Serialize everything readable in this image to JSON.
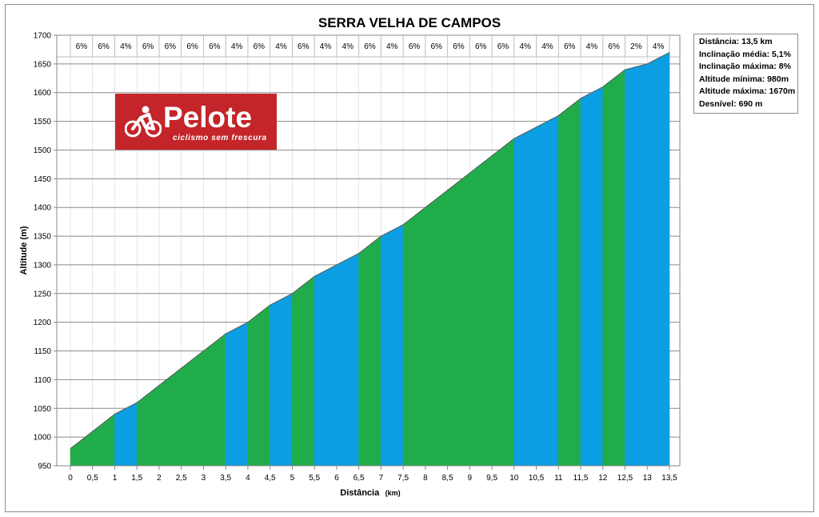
{
  "chart_data": {
    "type": "area",
    "title": "SERRA VELHA DE CAMPOS",
    "xlabel": "Distância",
    "xlabel_unit": "(km)",
    "ylabel": "Altitude (m)",
    "xlim": [
      0,
      13.5
    ],
    "ylim": [
      950,
      1700
    ],
    "y_ticks": [
      950,
      1000,
      1050,
      1100,
      1150,
      1200,
      1250,
      1300,
      1350,
      1400,
      1450,
      1500,
      1550,
      1600,
      1650,
      1700
    ],
    "x_ticks": [
      "0",
      "0,5",
      "1",
      "1,5",
      "2",
      "2,5",
      "3",
      "3,5",
      "4",
      "4,5",
      "5",
      "5,5",
      "6",
      "6,5",
      "7",
      "7,5",
      "8",
      "8,5",
      "9",
      "9,5",
      "10",
      "10,5",
      "11",
      "11,5",
      "12",
      "12,5",
      "13",
      "13,5"
    ],
    "grid": true,
    "x": [
      0,
      0.5,
      1,
      1.5,
      2,
      2.5,
      3,
      3.5,
      4,
      4.5,
      5,
      5.5,
      6,
      6.5,
      7,
      7.5,
      8,
      8.5,
      9,
      9.5,
      10,
      10.5,
      11,
      11.5,
      12,
      12.5,
      13,
      13.5
    ],
    "altitude": [
      980,
      1010,
      1040,
      1060,
      1090,
      1120,
      1150,
      1180,
      1200,
      1230,
      1250,
      1280,
      1300,
      1320,
      1350,
      1370,
      1400,
      1430,
      1460,
      1490,
      1520,
      1540,
      1560,
      1590,
      1610,
      1640,
      1650,
      1670
    ],
    "gradients": [
      "6%",
      "6%",
      "4%",
      "6%",
      "6%",
      "6%",
      "6%",
      "4%",
      "6%",
      "4%",
      "6%",
      "4%",
      "4%",
      "6%",
      "4%",
      "6%",
      "6%",
      "6%",
      "6%",
      "6%",
      "4%",
      "4%",
      "6%",
      "4%",
      "6%",
      "2%",
      "4%"
    ],
    "segment_colors": {
      "6%": "#21ac4b",
      "4%": "#0c9ee2",
      "2%": "#0c9ee2"
    }
  },
  "info": {
    "lines": [
      "Distância:  13,5 km",
      "Inclinação média:  5,1%",
      "Inclinação máxima:  8%",
      "Altitude mínima:  980m",
      "Altitude máxima:  1670m",
      "Desnível:  690 m"
    ]
  },
  "logo": {
    "name": "Pelote",
    "tagline": "ciclismo sem frescura",
    "color": "#c4252a"
  }
}
